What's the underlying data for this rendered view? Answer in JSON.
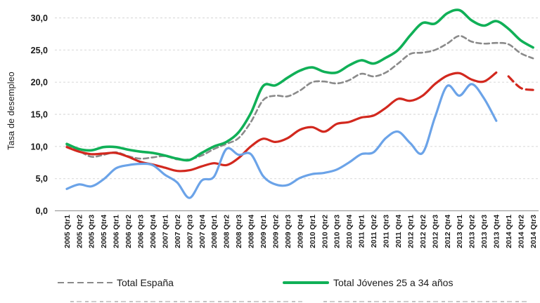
{
  "chart_data": {
    "type": "line",
    "title": "",
    "ylabel": "Tasa de desempleo",
    "xlabel": "",
    "grid": "horizontal-dashed",
    "y_axis": {
      "min": 0,
      "max": 32,
      "tick_step": 5,
      "tick_labels": [
        "0,0",
        "5,0",
        "10,0",
        "15,0",
        "20,0",
        "25,0",
        "30,0"
      ]
    },
    "categories": [
      "2005 Qtr1",
      "2005 Qtr2",
      "2005 Qtr3",
      "2005 Qtr4",
      "2006 Qtr1",
      "2006 Qtr2",
      "2006 Qtr3",
      "2006 Qtr4",
      "2007 Qtr1",
      "2007 Qtr2",
      "2007 Qtr3",
      "2007 Qtr4",
      "2008 Qtr1",
      "2008 Qtr2",
      "2008 Qtr3",
      "2008 Qtr4",
      "2009 Qtr1",
      "2009 Qtr2",
      "2009 Qtr3",
      "2009 Qtr4",
      "2010 Qtr1",
      "2010 Qtr2",
      "2010 Qtr3",
      "2010 Qtr4",
      "2011 Qtr1",
      "2011 Qtr2",
      "2011 Qtr3",
      "2011 Qtr4",
      "2012 Qtr1",
      "2012 Qtr2",
      "2012 Qtr3",
      "2012 Qtr4",
      "2013 Qtr1",
      "2013 Qtr2",
      "2013 Qtr3",
      "2013 Qtr4",
      "2014 Qtr1",
      "2014 Qtr2",
      "2014 Qtr3"
    ],
    "series": [
      {
        "id": "total-espana",
        "name": "Total España",
        "color": "#8a8a8a",
        "line_style": "dashed",
        "line_width": 2.6,
        "values": [
          10.2,
          9.3,
          8.4,
          8.7,
          9.1,
          8.5,
          8.1,
          8.3,
          8.5,
          8.0,
          8.0,
          8.6,
          9.6,
          10.4,
          11.3,
          13.8,
          17.2,
          17.9,
          17.8,
          18.7,
          20.0,
          20.1,
          19.8,
          20.3,
          21.3,
          20.9,
          21.5,
          22.9,
          24.4,
          24.6,
          25.0,
          26.0,
          27.2,
          26.3,
          26.0,
          26.1,
          25.9,
          24.5,
          23.7
        ]
      },
      {
        "id": "jovenes-25-34",
        "name": "Total Jóvenes 25 a 34 años",
        "color": "#10b057",
        "line_style": "solid",
        "line_width": 3.6,
        "values": [
          10.4,
          9.6,
          9.4,
          9.9,
          9.9,
          9.5,
          9.2,
          9.0,
          8.6,
          8.1,
          7.9,
          9.0,
          10.0,
          10.7,
          12.2,
          15.2,
          19.4,
          19.5,
          20.7,
          21.8,
          22.3,
          21.6,
          21.5,
          22.6,
          23.4,
          22.9,
          23.8,
          25.0,
          27.3,
          29.2,
          29.1,
          30.7,
          31.2,
          29.6,
          28.8,
          29.5,
          28.3,
          26.5,
          25.4
        ]
      },
      {
        "id": "serie-roja",
        "name": "",
        "color": "#d2281e",
        "line_style": "solid",
        "line_width": 3.2,
        "values": [
          9.9,
          9.2,
          8.8,
          8.9,
          9.0,
          8.4,
          7.6,
          7.2,
          6.7,
          6.2,
          6.3,
          6.9,
          7.4,
          7.1,
          8.2,
          10.0,
          11.2,
          10.7,
          11.3,
          12.6,
          13.0,
          12.3,
          13.5,
          13.8,
          14.5,
          14.8,
          16.0,
          17.4,
          17.1,
          17.9,
          19.7,
          21.0,
          21.4,
          20.4,
          20.1,
          21.5,
          null,
          null,
          null
        ]
      },
      {
        "id": "serie-roja-tramo-discontinuo",
        "name": "",
        "color": "#d2281e",
        "line_style": "dashed",
        "line_width": 3.2,
        "values": [
          null,
          null,
          null,
          null,
          null,
          null,
          null,
          null,
          null,
          null,
          null,
          null,
          null,
          null,
          null,
          null,
          null,
          null,
          null,
          null,
          null,
          null,
          null,
          null,
          null,
          null,
          null,
          null,
          null,
          null,
          null,
          null,
          null,
          null,
          null,
          null,
          20.9,
          19.1,
          18.8
        ]
      },
      {
        "id": "serie-azul",
        "name": "",
        "color": "#6ba3e8",
        "line_style": "solid",
        "line_width": 3.2,
        "values": [
          3.4,
          4.1,
          3.8,
          4.9,
          6.6,
          7.1,
          7.3,
          7.1,
          5.6,
          4.4,
          2.0,
          4.7,
          5.3,
          9.6,
          8.7,
          8.8,
          5.4,
          4.1,
          4.0,
          5.1,
          5.7,
          5.9,
          6.4,
          7.5,
          8.8,
          9.1,
          11.3,
          12.3,
          10.5,
          9.0,
          14.5,
          19.4,
          17.9,
          19.7,
          17.5,
          14.0,
          null,
          null,
          null
        ]
      }
    ],
    "legend": {
      "position": "bottom",
      "row1": [
        {
          "label": "Total España",
          "swatch": "gray-dashed"
        },
        {
          "label": "Total Jóvenes 25 a 34 años",
          "swatch": "green-solid"
        }
      ],
      "row2_truncated": true
    },
    "colors": {
      "gridline": "#dcdcdc",
      "axis_line": "#9e9e9e",
      "tick_text": "#1a1a1a"
    }
  }
}
